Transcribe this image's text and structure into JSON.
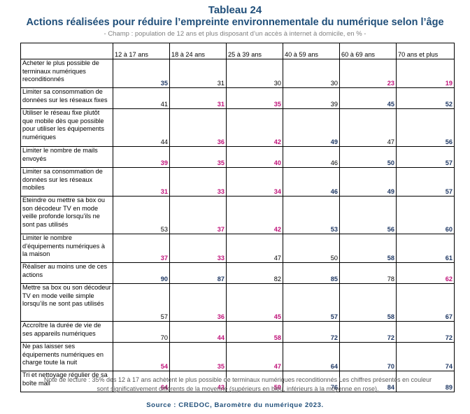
{
  "title": "Tableau 24",
  "subtitle": "Actions réalisées pour réduire l’empreinte environnementale du numérique selon l’âge",
  "scope": "- Champ : population de 12 ans et plus disposant d’un accès à internet à domicile, en % -",
  "columns": [
    "",
    "12 à 17 ans",
    "18 à 24 ans",
    "25 à 39 ans",
    "40 à 59 ans",
    "60 à 69 ans",
    "70 ans et plus"
  ],
  "colors": {
    "high": "#1f3864",
    "low": "#c0137a",
    "title": "#1f4e79"
  },
  "rows": [
    {
      "label": "Acheter le plus possible de terminaux numériques reconditionnés",
      "values": [
        "35",
        "31",
        "30",
        "30",
        "23",
        "19"
      ],
      "status": [
        "high",
        "",
        "",
        "",
        "low",
        "low"
      ]
    },
    {
      "label": "Limiter sa consommation de données sur les réseaux fixes",
      "values": [
        "41",
        "31",
        "35",
        "39",
        "45",
        "52"
      ],
      "status": [
        "",
        "low",
        "low",
        "",
        "high",
        "high"
      ]
    },
    {
      "label": "Utiliser le réseau fixe plutôt que mobile dès que possible pour utiliser les équipements numériques",
      "values": [
        "44",
        "36",
        "42",
        "49",
        "47",
        "56"
      ],
      "status": [
        "",
        "low",
        "low",
        "high",
        "",
        "high"
      ]
    },
    {
      "label": "Limiter le nombre de mails envoyés",
      "values": [
        "39",
        "35",
        "40",
        "46",
        "50",
        "57"
      ],
      "status": [
        "low",
        "low",
        "low",
        "",
        "high",
        "high"
      ]
    },
    {
      "label": "Limiter sa consommation de données sur les réseaux mobiles",
      "values": [
        "31",
        "33",
        "34",
        "46",
        "49",
        "57"
      ],
      "status": [
        "low",
        "low",
        "low",
        "high",
        "high",
        "high"
      ]
    },
    {
      "label": "Eteindre ou mettre sa box ou son décodeur TV en mode veille profonde lorsqu’ils ne sont pas utilisés",
      "values": [
        "53",
        "37",
        "42",
        "53",
        "56",
        "60"
      ],
      "status": [
        "",
        "low",
        "low",
        "high",
        "high",
        "high"
      ]
    },
    {
      "label": "Limiter le nombre d’équipements numériques à la maison",
      "values": [
        "37",
        "33",
        "47",
        "50",
        "58",
        "61"
      ],
      "status": [
        "low",
        "low",
        "",
        "",
        "high",
        "high"
      ]
    },
    {
      "label": "Réaliser au moins une de ces actions",
      "values": [
        "90",
        "87",
        "82",
        "85",
        "78",
        "62"
      ],
      "status": [
        "high",
        "high",
        "",
        "high",
        "",
        "low"
      ]
    },
    {
      "label": "Mettre sa box ou son décodeur TV en mode veille simple lorsqu’ils ne sont pas utilisés",
      "values": [
        "57",
        "36",
        "45",
        "57",
        "58",
        "67"
      ],
      "status": [
        "",
        "low",
        "low",
        "high",
        "high",
        "high"
      ]
    },
    {
      "label": "Accroître la durée de vie de ses appareils numériques",
      "values": [
        "70",
        "44",
        "58",
        "72",
        "72",
        "72"
      ],
      "status": [
        "",
        "low",
        "low",
        "high",
        "high",
        "high"
      ]
    },
    {
      "label": "Ne pas laisser ses équipements numériques en charge toute la nuit",
      "values": [
        "54",
        "35",
        "47",
        "64",
        "70",
        "74"
      ],
      "status": [
        "low",
        "low",
        "low",
        "high",
        "high",
        "high"
      ]
    },
    {
      "label": "Tri et nettoyage régulier de sa boîte mail",
      "values": [
        "64",
        "43",
        "59",
        "76",
        "84",
        "89"
      ],
      "status": [
        "low",
        "low",
        "low",
        "high",
        "high",
        "high"
      ]
    }
  ],
  "note_line1": "Note de lecture : 35% des 12 à 17 ans achètent le plus possible de terminaux numériques reconditionnés Les chiffres présentés en couleur",
  "note_line2": "sont significativement différents de la moyenne (supérieurs en bleu, inférieurs à la moyenne en rose).",
  "source": "Source : CREDOC, Baromètre du numérique 2023."
}
